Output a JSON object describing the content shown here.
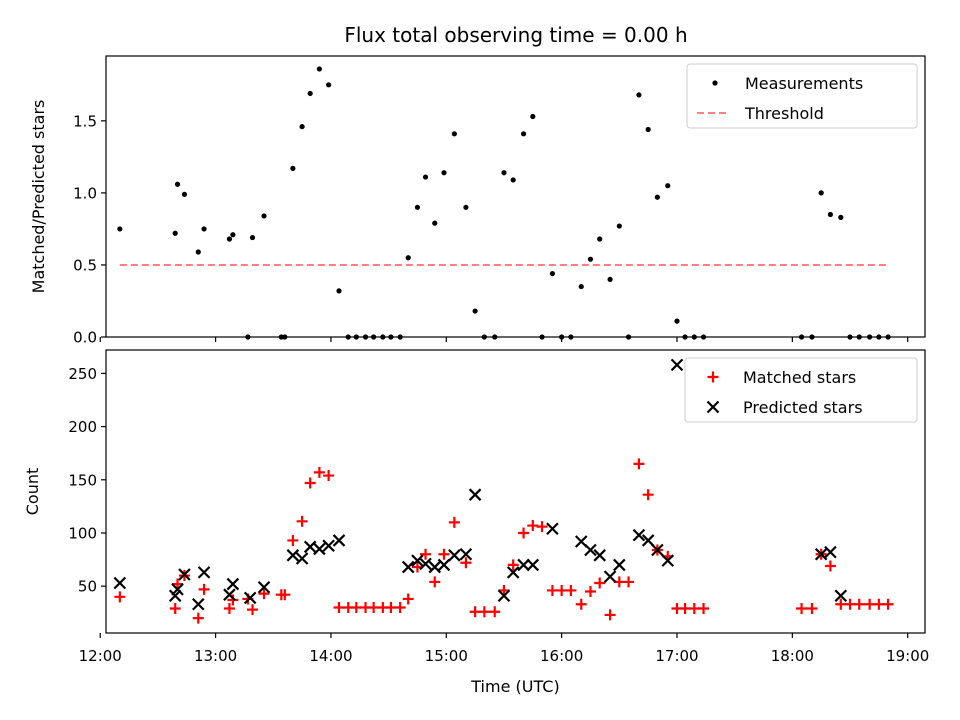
{
  "figure": {
    "title": "Flux total observing time = 0.00 h"
  },
  "chart_data": [
    {
      "type": "scatter",
      "ylabel": "Matched/Predicted stars",
      "xlim": [
        12.05,
        19.15
      ],
      "ylim": [
        0,
        1.95
      ],
      "yticks": [
        0.0,
        0.5,
        1.0,
        1.5
      ],
      "ytick_labels": [
        "0.0",
        "0.5",
        "1.0",
        "1.5"
      ],
      "legend_position": "top-right",
      "series": [
        {
          "name": "Measurements",
          "kind": "dots",
          "color": "#000000",
          "points": [
            [
              12.17,
              0.75
            ],
            [
              12.65,
              0.72
            ],
            [
              12.67,
              1.06
            ],
            [
              12.73,
              0.99
            ],
            [
              12.85,
              0.59
            ],
            [
              12.9,
              0.75
            ],
            [
              13.12,
              0.68
            ],
            [
              13.15,
              0.71
            ],
            [
              13.28,
              0.0
            ],
            [
              13.32,
              0.69
            ],
            [
              13.42,
              0.84
            ],
            [
              13.57,
              0.0
            ],
            [
              13.6,
              0.0
            ],
            [
              13.67,
              1.17
            ],
            [
              13.75,
              1.46
            ],
            [
              13.82,
              1.69
            ],
            [
              13.9,
              1.86
            ],
            [
              13.98,
              1.75
            ],
            [
              14.07,
              0.32
            ],
            [
              14.15,
              0.0
            ],
            [
              14.22,
              0.0
            ],
            [
              14.3,
              0.0
            ],
            [
              14.37,
              0.0
            ],
            [
              14.45,
              0.0
            ],
            [
              14.52,
              0.0
            ],
            [
              14.6,
              0.0
            ],
            [
              14.67,
              0.55
            ],
            [
              14.75,
              0.9
            ],
            [
              14.82,
              1.11
            ],
            [
              14.9,
              0.79
            ],
            [
              14.98,
              1.14
            ],
            [
              15.07,
              1.41
            ],
            [
              15.17,
              0.9
            ],
            [
              15.25,
              0.18
            ],
            [
              15.33,
              0.0
            ],
            [
              15.42,
              0.0
            ],
            [
              15.5,
              1.14
            ],
            [
              15.58,
              1.09
            ],
            [
              15.67,
              1.41
            ],
            [
              15.75,
              1.53
            ],
            [
              15.83,
              0.0
            ],
            [
              15.92,
              0.44
            ],
            [
              16.0,
              0.0
            ],
            [
              16.08,
              0.0
            ],
            [
              16.17,
              0.35
            ],
            [
              16.25,
              0.54
            ],
            [
              16.33,
              0.68
            ],
            [
              16.42,
              0.4
            ],
            [
              16.5,
              0.77
            ],
            [
              16.58,
              0.0
            ],
            [
              16.67,
              1.68
            ],
            [
              16.75,
              1.44
            ],
            [
              16.83,
              0.97
            ],
            [
              16.92,
              1.05
            ],
            [
              17.0,
              0.11
            ],
            [
              17.07,
              0.0
            ],
            [
              17.15,
              0.0
            ],
            [
              17.23,
              0.0
            ],
            [
              18.08,
              0.0
            ],
            [
              18.17,
              0.0
            ],
            [
              18.25,
              1.0
            ],
            [
              18.33,
              0.85
            ],
            [
              18.42,
              0.83
            ],
            [
              18.5,
              0.0
            ],
            [
              18.58,
              0.0
            ],
            [
              18.67,
              0.0
            ],
            [
              18.75,
              0.0
            ],
            [
              18.83,
              0.0
            ]
          ]
        },
        {
          "name": "Threshold",
          "kind": "dashed-line",
          "color": "#ff7f7f",
          "points": [
            [
              12.17,
              0.5
            ],
            [
              18.83,
              0.5
            ]
          ]
        }
      ]
    },
    {
      "type": "scatter",
      "xlabel": "Time (UTC)",
      "ylabel": "Count",
      "xlim": [
        12.05,
        19.15
      ],
      "ylim": [
        6,
        272
      ],
      "yticks": [
        50,
        100,
        150,
        200,
        250
      ],
      "ytick_labels": [
        "50",
        "100",
        "150",
        "200",
        "250"
      ],
      "xticks": [
        12,
        13,
        14,
        15,
        16,
        17,
        18,
        19
      ],
      "xtick_labels": [
        "12:00",
        "13:00",
        "14:00",
        "15:00",
        "16:00",
        "17:00",
        "18:00",
        "19:00"
      ],
      "legend_position": "top-right",
      "series": [
        {
          "name": "Matched stars",
          "kind": "plus",
          "color": "#ff0000",
          "points": [
            [
              12.17,
              40
            ],
            [
              12.65,
              29
            ],
            [
              12.67,
              52
            ],
            [
              12.73,
              60
            ],
            [
              12.85,
              20
            ],
            [
              12.9,
              47
            ],
            [
              13.12,
              29
            ],
            [
              13.15,
              37
            ],
            [
              13.28,
              38
            ],
            [
              13.32,
              28
            ],
            [
              13.42,
              43
            ],
            [
              13.57,
              42
            ],
            [
              13.6,
              42
            ],
            [
              13.67,
              93
            ],
            [
              13.75,
              111
            ],
            [
              13.82,
              147
            ],
            [
              13.9,
              157
            ],
            [
              13.98,
              154
            ],
            [
              14.07,
              30
            ],
            [
              14.15,
              30
            ],
            [
              14.22,
              30
            ],
            [
              14.3,
              30
            ],
            [
              14.37,
              30
            ],
            [
              14.45,
              30
            ],
            [
              14.52,
              30
            ],
            [
              14.6,
              30
            ],
            [
              14.67,
              38
            ],
            [
              14.75,
              68
            ],
            [
              14.82,
              80
            ],
            [
              14.9,
              54
            ],
            [
              14.98,
              80
            ],
            [
              15.07,
              110
            ],
            [
              15.17,
              72
            ],
            [
              15.25,
              26
            ],
            [
              15.33,
              26
            ],
            [
              15.42,
              26
            ],
            [
              15.5,
              46
            ],
            [
              15.58,
              70
            ],
            [
              15.67,
              100
            ],
            [
              15.75,
              107
            ],
            [
              15.83,
              106
            ],
            [
              15.92,
              46
            ],
            [
              16.0,
              46
            ],
            [
              16.08,
              46
            ],
            [
              16.17,
              33
            ],
            [
              16.25,
              45
            ],
            [
              16.33,
              53
            ],
            [
              16.42,
              23
            ],
            [
              16.5,
              54
            ],
            [
              16.58,
              54
            ],
            [
              16.67,
              165
            ],
            [
              16.75,
              136
            ],
            [
              16.83,
              84
            ],
            [
              16.92,
              78
            ],
            [
              17.0,
              29
            ],
            [
              17.07,
              29
            ],
            [
              17.15,
              29
            ],
            [
              17.23,
              29
            ],
            [
              18.08,
              29
            ],
            [
              18.17,
              29
            ],
            [
              18.25,
              80
            ],
            [
              18.33,
              69
            ],
            [
              18.42,
              33
            ],
            [
              18.5,
              33
            ],
            [
              18.58,
              33
            ],
            [
              18.67,
              33
            ],
            [
              18.75,
              33
            ],
            [
              18.83,
              33
            ]
          ]
        },
        {
          "name": "Predicted stars",
          "kind": "x",
          "color": "#000000",
          "points": [
            [
              12.17,
              53
            ],
            [
              12.65,
              41
            ],
            [
              12.67,
              47
            ],
            [
              12.73,
              61
            ],
            [
              12.85,
              33
            ],
            [
              12.9,
              63
            ],
            [
              13.12,
              42
            ],
            [
              13.15,
              52
            ],
            [
              13.3,
              39
            ],
            [
              13.42,
              49
            ],
            [
              13.67,
              79
            ],
            [
              13.75,
              76
            ],
            [
              13.82,
              87
            ],
            [
              13.9,
              85
            ],
            [
              13.98,
              88
            ],
            [
              14.07,
              93
            ],
            [
              14.67,
              68
            ],
            [
              14.75,
              74
            ],
            [
              14.82,
              71
            ],
            [
              14.9,
              68
            ],
            [
              14.98,
              70
            ],
            [
              15.07,
              79
            ],
            [
              15.17,
              80
            ],
            [
              15.25,
              136
            ],
            [
              15.5,
              41
            ],
            [
              15.58,
              63
            ],
            [
              15.67,
              70
            ],
            [
              15.75,
              70
            ],
            [
              15.92,
              104
            ],
            [
              16.17,
              92
            ],
            [
              16.25,
              84
            ],
            [
              16.33,
              79
            ],
            [
              16.42,
              59
            ],
            [
              16.5,
              70
            ],
            [
              16.67,
              98
            ],
            [
              16.75,
              93
            ],
            [
              16.83,
              84
            ],
            [
              16.92,
              74
            ],
            [
              17.0,
              258
            ],
            [
              18.25,
              80
            ],
            [
              18.33,
              82
            ],
            [
              18.42,
              41
            ]
          ]
        }
      ]
    }
  ]
}
